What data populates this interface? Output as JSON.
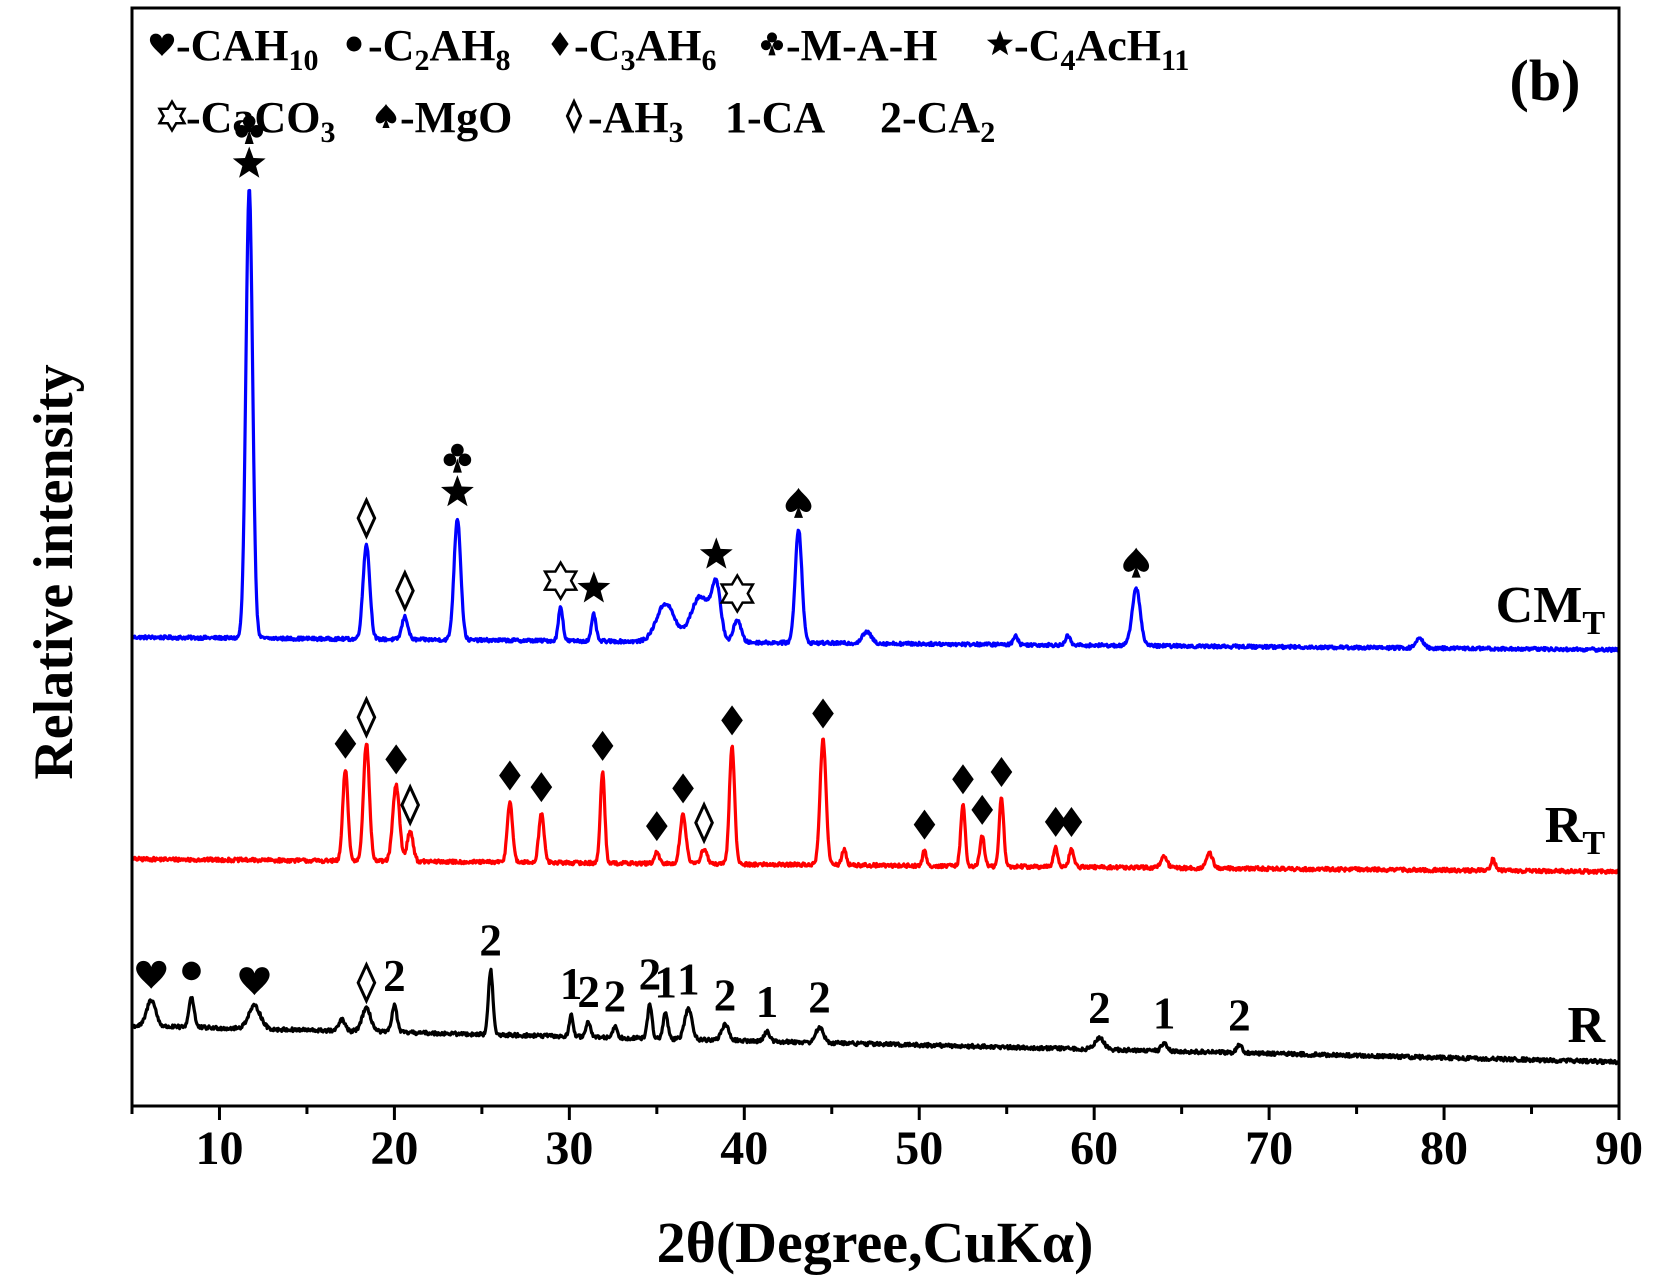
{
  "chart_data": {
    "type": "line",
    "panel_label": "(b)",
    "xlabel": "2θ(Degree,CuKα)",
    "ylabel": "Relative intensity",
    "xlim": [
      5,
      90
    ],
    "x_ticks": [
      10,
      20,
      30,
      40,
      50,
      60,
      70,
      80,
      90
    ],
    "y_ticks_shown": false,
    "grid": false,
    "legend_placement": "top",
    "legend": [
      {
        "symbol": "heart",
        "label": "-CAH",
        "sub": "10"
      },
      {
        "symbol": "dot",
        "label": "-C",
        "sub": "2",
        "label2": "AH",
        "sub2": "8"
      },
      {
        "symbol": "diamond",
        "label": "-C",
        "sub": "3",
        "label2": "AH",
        "sub2": "6"
      },
      {
        "symbol": "club",
        "label": "-M-A-H"
      },
      {
        "symbol": "star",
        "label": "-C",
        "sub": "4",
        "label2": "AcH",
        "sub2": "11"
      },
      {
        "symbol": "star-open",
        "label": "-CaCO",
        "sub": "3"
      },
      {
        "symbol": "spade",
        "label": "-MgO"
      },
      {
        "symbol": "diamond-open",
        "label": "-AH",
        "sub": "3"
      },
      {
        "symbol": "none",
        "label": "1-CA"
      },
      {
        "symbol": "none",
        "label": "2-CA",
        "sub": "2"
      }
    ],
    "series": [
      {
        "name": "CM",
        "name_sub": "T",
        "color": "#0000ff",
        "baseline": 0.6,
        "end_level": 0.27,
        "noise": 0.045,
        "peaks": [
          [
            11.7,
            11.8,
            0.45
          ],
          [
            18.4,
            2.5,
            0.45
          ],
          [
            20.6,
            0.6,
            0.4
          ],
          [
            23.6,
            3.2,
            0.45
          ],
          [
            29.5,
            0.9,
            0.3
          ],
          [
            31.4,
            0.7,
            0.3
          ],
          [
            35.5,
            1.0,
            1.2
          ],
          [
            37.5,
            1.2,
            1.3
          ],
          [
            38.4,
            1.3,
            0.6
          ],
          [
            39.6,
            0.6,
            0.5
          ],
          [
            43.1,
            3.0,
            0.45
          ],
          [
            47.0,
            0.3,
            0.6
          ],
          [
            55.5,
            0.25,
            0.3
          ],
          [
            58.5,
            0.25,
            0.3
          ],
          [
            62.4,
            1.5,
            0.55
          ],
          [
            78.6,
            0.25,
            0.5
          ]
        ],
        "markers": [
          {
            "x": 11.7,
            "symbols": [
              "star",
              "club"
            ]
          },
          {
            "x": 18.4,
            "symbols": [
              "diamond-open"
            ]
          },
          {
            "x": 20.6,
            "symbols": [
              "diamond-open"
            ]
          },
          {
            "x": 23.6,
            "symbols": [
              "star",
              "club"
            ]
          },
          {
            "x": 29.5,
            "symbols": [
              "star-open"
            ]
          },
          {
            "x": 31.4,
            "symbols": [
              "star"
            ]
          },
          {
            "x": 38.4,
            "symbols": [
              "star"
            ]
          },
          {
            "x": 39.6,
            "symbols": [
              "star-open"
            ]
          },
          {
            "x": 43.1,
            "symbols": [
              "spade"
            ]
          },
          {
            "x": 62.4,
            "symbols": [
              "spade"
            ]
          }
        ]
      },
      {
        "name": "R",
        "name_sub": "T",
        "color": "#ff0000",
        "baseline": 0.55,
        "end_level": 0.22,
        "noise": 0.05,
        "peaks": [
          [
            17.2,
            2.4,
            0.35
          ],
          [
            18.4,
            3.1,
            0.4
          ],
          [
            20.1,
            2.0,
            0.45
          ],
          [
            20.9,
            0.8,
            0.4
          ],
          [
            26.6,
            1.6,
            0.35
          ],
          [
            28.4,
            1.3,
            0.35
          ],
          [
            31.9,
            2.4,
            0.3
          ],
          [
            35.0,
            0.3,
            0.3
          ],
          [
            36.5,
            1.3,
            0.4
          ],
          [
            37.7,
            0.4,
            0.4
          ],
          [
            39.3,
            3.1,
            0.35
          ],
          [
            44.5,
            3.3,
            0.4
          ],
          [
            45.7,
            0.4,
            0.3
          ],
          [
            50.3,
            0.4,
            0.25
          ],
          [
            52.5,
            1.6,
            0.3
          ],
          [
            53.6,
            0.8,
            0.3
          ],
          [
            54.7,
            1.8,
            0.3
          ],
          [
            57.8,
            0.5,
            0.3
          ],
          [
            58.7,
            0.5,
            0.3
          ],
          [
            64.0,
            0.3,
            0.4
          ],
          [
            66.6,
            0.4,
            0.4
          ],
          [
            82.8,
            0.3,
            0.3
          ]
        ],
        "markers": [
          {
            "x": 17.2,
            "symbols": [
              "diamond"
            ]
          },
          {
            "x": 18.4,
            "symbols": [
              "diamond-open"
            ]
          },
          {
            "x": 20.1,
            "symbols": [
              "diamond"
            ]
          },
          {
            "x": 20.9,
            "symbols": [
              "diamond-open"
            ]
          },
          {
            "x": 26.6,
            "symbols": [
              "diamond"
            ]
          },
          {
            "x": 28.4,
            "symbols": [
              "diamond"
            ]
          },
          {
            "x": 31.9,
            "symbols": [
              "diamond"
            ]
          },
          {
            "x": 35.0,
            "symbols": [
              "diamond"
            ]
          },
          {
            "x": 36.5,
            "symbols": [
              "diamond"
            ]
          },
          {
            "x": 37.7,
            "symbols": [
              "diamond-open"
            ]
          },
          {
            "x": 39.3,
            "symbols": [
              "diamond"
            ]
          },
          {
            "x": 44.5,
            "symbols": [
              "diamond"
            ]
          },
          {
            "x": 50.3,
            "symbols": [
              "diamond"
            ]
          },
          {
            "x": 52.5,
            "symbols": [
              "diamond"
            ]
          },
          {
            "x": 53.6,
            "symbols": [
              "diamond"
            ]
          },
          {
            "x": 54.7,
            "symbols": [
              "diamond"
            ]
          },
          {
            "x": 57.8,
            "symbols": [
              "diamond"
            ]
          },
          {
            "x": 58.7,
            "symbols": [
              "diamond"
            ]
          }
        ]
      },
      {
        "name": "R",
        "color": "#000000",
        "baseline": 0.95,
        "end_level": 0.0,
        "noise": 0.05,
        "peaks": [
          [
            6.1,
            0.7,
            0.6
          ],
          [
            8.4,
            0.8,
            0.35
          ],
          [
            12.0,
            0.6,
            0.8
          ],
          [
            17.0,
            0.3,
            0.4
          ],
          [
            18.4,
            0.6,
            0.6
          ],
          [
            20.0,
            0.7,
            0.35
          ],
          [
            25.5,
            1.7,
            0.3
          ],
          [
            30.1,
            0.6,
            0.25
          ],
          [
            31.1,
            0.4,
            0.3
          ],
          [
            32.6,
            0.3,
            0.3
          ],
          [
            34.6,
            0.9,
            0.3
          ],
          [
            35.5,
            0.7,
            0.3
          ],
          [
            36.8,
            0.8,
            0.5
          ],
          [
            38.9,
            0.4,
            0.5
          ],
          [
            41.3,
            0.25,
            0.4
          ],
          [
            44.3,
            0.4,
            0.5
          ],
          [
            60.3,
            0.3,
            0.6
          ],
          [
            64.0,
            0.2,
            0.4
          ],
          [
            68.3,
            0.2,
            0.4
          ]
        ],
        "markers": [
          {
            "x": 6.1,
            "symbols": [
              "heart"
            ]
          },
          {
            "x": 8.4,
            "symbols": [
              "dot"
            ]
          },
          {
            "x": 12.0,
            "symbols": [
              "heart"
            ]
          },
          {
            "x": 18.4,
            "symbols": [
              "diamond-open"
            ]
          },
          {
            "x": 20.0,
            "symbols": [
              "2"
            ]
          },
          {
            "x": 25.5,
            "symbols": [
              "2"
            ]
          },
          {
            "x": 30.1,
            "symbols": [
              "1"
            ]
          },
          {
            "x": 31.1,
            "symbols": [
              "2"
            ]
          },
          {
            "x": 32.6,
            "symbols": [
              "2"
            ]
          },
          {
            "x": 34.6,
            "symbols": [
              "2"
            ]
          },
          {
            "x": 35.5,
            "symbols": [
              "1"
            ]
          },
          {
            "x": 36.8,
            "symbols": [
              "1"
            ]
          },
          {
            "x": 38.9,
            "symbols": [
              "2"
            ]
          },
          {
            "x": 41.3,
            "symbols": [
              "1"
            ]
          },
          {
            "x": 44.3,
            "symbols": [
              "2"
            ]
          },
          {
            "x": 60.3,
            "symbols": [
              "2"
            ]
          },
          {
            "x": 64.0,
            "symbols": [
              "1"
            ]
          },
          {
            "x": 68.3,
            "symbols": [
              "2"
            ]
          }
        ]
      }
    ]
  }
}
